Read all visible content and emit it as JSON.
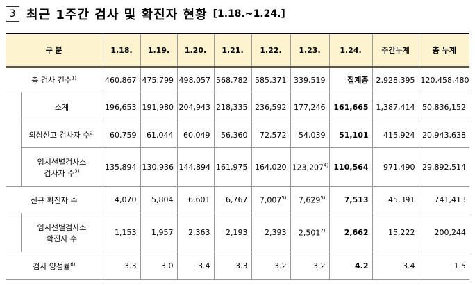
{
  "title": {
    "number": "3",
    "text": "최근 1주간 검사 및 확진자 현황",
    "period": "[1.18.~1.24.]"
  },
  "table": {
    "header": [
      "구 분",
      "1.18.",
      "1.19.",
      "1.20.",
      "1.21.",
      "1.22.",
      "1.23.",
      "1.24.",
      "주간누계",
      "총 누계"
    ],
    "rows": [
      {
        "label": "총 검사 건수",
        "label_note": "1)",
        "cells": [
          "460,867",
          "475,799",
          "498,057",
          "568,782",
          "585,371",
          "339,519",
          "집계중",
          "2,928,395",
          "120,458,480"
        ]
      },
      {
        "label": "소계",
        "cells": [
          "196,653",
          "191,980",
          "204,943",
          "218,335",
          "236,592",
          "177,246",
          "161,665",
          "1,387,414",
          "50,836,152"
        ]
      },
      {
        "label": "의심신고 검사자 수",
        "label_note": "2)",
        "cells": [
          "60,759",
          "61,044",
          "60,049",
          "56,360",
          "72,572",
          "54,039",
          "51,101",
          "415,924",
          "20,943,638"
        ]
      },
      {
        "label": "임시선별검사소\n검사자 수",
        "label_note": "3)",
        "cells": [
          "135,894",
          "130,936",
          "144,894",
          "161,975",
          "164,020",
          {
            "text": "123,207",
            "note": "4)"
          },
          "110,564",
          "971,490",
          "29,892,514"
        ]
      },
      {
        "label": "신규 확진자 수",
        "cells": [
          "4,070",
          "5,804",
          "6,601",
          "6,767",
          {
            "text": "7,007",
            "note": "5)"
          },
          {
            "text": "7,629",
            "note": "5)"
          },
          "7,513",
          "45,391",
          "741,413"
        ]
      },
      {
        "label": "임시선별검사소\n확진자 수",
        "cells": [
          "1,153",
          "1,957",
          "2,363",
          "2,193",
          "2,393",
          {
            "text": "2,501",
            "note": "7)"
          },
          "2,662",
          "15,222",
          "200,244"
        ]
      },
      {
        "label": "검사 양성률",
        "label_note": "6)",
        "cells": [
          "3.3",
          "3.0",
          "3.4",
          "3.3",
          "3.2",
          "3.2",
          "4.2",
          "3.4",
          "1.5"
        ]
      }
    ]
  }
}
